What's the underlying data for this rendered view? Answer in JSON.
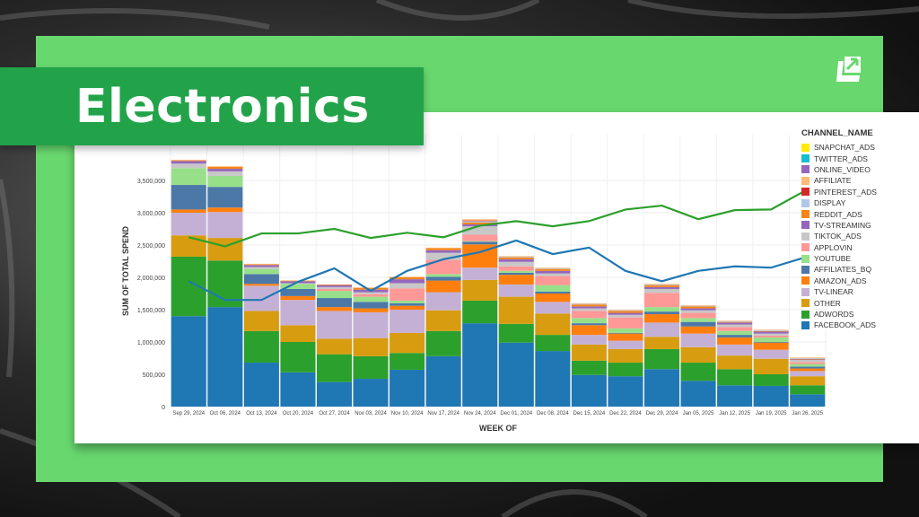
{
  "header": {
    "title": "Electronics",
    "logo": "brand-arrow-logo-icon"
  },
  "colors": {
    "panel_green": "#68d86e",
    "banner_green": "#22a34a",
    "line_green": "#2ca02c",
    "line_blue": "#1f77b4"
  },
  "legend": {
    "title": "CHANNEL_NAME",
    "items": [
      {
        "label": "SNAPCHAT_ADS",
        "color": "#ffea00"
      },
      {
        "label": "TWITTER_ADS",
        "color": "#17becf"
      },
      {
        "label": "ONLINE_VIDEO",
        "color": "#9467bd"
      },
      {
        "label": "AFFILIATE",
        "color": "#ffbb78"
      },
      {
        "label": "PINTEREST_ADS",
        "color": "#d62728"
      },
      {
        "label": "DISPLAY",
        "color": "#aec7e8"
      },
      {
        "label": "REDDIT_ADS",
        "color": "#f58518"
      },
      {
        "label": "TV-STREAMING",
        "color": "#9467bd"
      },
      {
        "label": "TIKTOK_ADS",
        "color": "#c7c7c7"
      },
      {
        "label": "APPLOVIN",
        "color": "#ff9896"
      },
      {
        "label": "YOUTUBE",
        "color": "#98df8a"
      },
      {
        "label": "AFFILIATES_BQ",
        "color": "#4c78a8"
      },
      {
        "label": "AMAZON_ADS",
        "color": "#ff7f0e"
      },
      {
        "label": "TV-LINEAR",
        "color": "#c5b0d5"
      },
      {
        "label": "OTHER",
        "color": "#d89c10"
      },
      {
        "label": "ADWORDS",
        "color": "#2ca02c"
      },
      {
        "label": "FACEBOOK_ADS",
        "color": "#1f77b4"
      }
    ]
  },
  "chart_data": {
    "type": "bar",
    "stacked": true,
    "title": "Electronics",
    "xlabel": "WEEK OF",
    "ylabel": "SUM OF TOTAL SPEND",
    "ylim": [
      0,
      3900000
    ],
    "yticks": [
      "0",
      "500,000",
      "1,000,000",
      "1,500,000",
      "2,000,000",
      "2,500,000",
      "3,000,000",
      "3,500,000"
    ],
    "grid": true,
    "legend_position": "right",
    "categories": [
      "Sep 29, 2024",
      "Oct 06, 2024",
      "Oct 13, 2024",
      "Oct 20, 2024",
      "Oct 27, 2024",
      "Nov 03, 2024",
      "Nov 10, 2024",
      "Nov 17, 2024",
      "Nov 24, 2024",
      "Dec 01, 2024",
      "Dec 08, 2024",
      "Dec 15, 2024",
      "Dec 22, 2024",
      "Dec 29, 2024",
      "Jan 05, 2025",
      "Jan 12, 2025",
      "Jan 19, 2025",
      "Jan 26, 2025"
    ],
    "series": [
      {
        "name": "FACEBOOK_ADS",
        "color": "#1f77b4",
        "values": [
          1400000,
          1540000,
          680000,
          530000,
          380000,
          430000,
          570000,
          780000,
          1290000,
          990000,
          860000,
          490000,
          470000,
          580000,
          400000,
          330000,
          320000,
          190000
        ]
      },
      {
        "name": "ADWORDS",
        "color": "#2ca02c",
        "values": [
          920000,
          720000,
          490000,
          470000,
          430000,
          350000,
          260000,
          390000,
          350000,
          290000,
          250000,
          220000,
          210000,
          310000,
          280000,
          250000,
          180000,
          140000
        ]
      },
      {
        "name": "OTHER",
        "color": "#d89c10",
        "values": [
          330000,
          350000,
          310000,
          260000,
          240000,
          280000,
          310000,
          320000,
          320000,
          420000,
          330000,
          250000,
          210000,
          190000,
          240000,
          210000,
          240000,
          140000
        ]
      },
      {
        "name": "TV-LINEAR",
        "color": "#c5b0d5",
        "values": [
          350000,
          400000,
          390000,
          390000,
          430000,
          400000,
          360000,
          280000,
          190000,
          190000,
          180000,
          150000,
          130000,
          220000,
          210000,
          170000,
          140000,
          80000
        ]
      },
      {
        "name": "AMAZON_ADS",
        "color": "#ff7f0e",
        "values": [
          50000,
          70000,
          30000,
          60000,
          60000,
          60000,
          60000,
          180000,
          360000,
          150000,
          130000,
          150000,
          110000,
          130000,
          110000,
          110000,
          110000,
          40000
        ]
      },
      {
        "name": "AFFILIATES_BQ",
        "color": "#4c78a8",
        "values": [
          380000,
          320000,
          150000,
          110000,
          140000,
          100000,
          40000,
          60000,
          40000,
          30000,
          30000,
          30000,
          10000,
          40000,
          70000,
          40000,
          10000,
          30000
        ]
      },
      {
        "name": "YOUTUBE",
        "color": "#98df8a",
        "values": [
          260000,
          170000,
          80000,
          80000,
          110000,
          80000,
          40000,
          40000,
          10000,
          30000,
          100000,
          80000,
          70000,
          70000,
          60000,
          60000,
          70000,
          40000
        ]
      },
      {
        "name": "APPLOVIN",
        "color": "#ff9896",
        "values": [
          0,
          0,
          0,
          0,
          30000,
          40000,
          190000,
          220000,
          100000,
          70000,
          140000,
          110000,
          170000,
          220000,
          80000,
          60000,
          30000,
          30000
        ]
      },
      {
        "name": "TIKTOK_ADS",
        "color": "#c7c7c7",
        "values": [
          70000,
          70000,
          30000,
          10000,
          30000,
          30000,
          80000,
          110000,
          130000,
          70000,
          40000,
          40000,
          40000,
          60000,
          40000,
          40000,
          30000,
          30000
        ]
      },
      {
        "name": "TV-STREAMING",
        "color": "#9467bd",
        "values": [
          40000,
          40000,
          30000,
          30000,
          30000,
          40000,
          60000,
          40000,
          30000,
          40000,
          40000,
          30000,
          30000,
          30000,
          30000,
          30000,
          30000,
          10000
        ]
      },
      {
        "name": "REDDIT_ADS",
        "color": "#f58518",
        "values": [
          10000,
          30000,
          10000,
          10000,
          10000,
          30000,
          30000,
          30000,
          30000,
          30000,
          30000,
          30000,
          30000,
          30000,
          30000,
          10000,
          10000,
          10000
        ]
      },
      {
        "name": "DISPLAY",
        "color": "#aec7e8",
        "values": [
          0,
          0,
          0,
          0,
          0,
          0,
          0,
          0,
          20000,
          10000,
          10000,
          10000,
          10000,
          10000,
          10000,
          10000,
          10000,
          10000
        ]
      },
      {
        "name": "PINTEREST_ADS",
        "color": "#d62728",
        "values": [
          0,
          0,
          0,
          0,
          0,
          0,
          0,
          0,
          10000,
          0,
          0,
          0,
          0,
          0,
          0,
          0,
          0,
          0
        ]
      },
      {
        "name": "AFFILIATE",
        "color": "#ffbb78",
        "values": [
          10000,
          10000,
          10000,
          0,
          0,
          0,
          10000,
          10000,
          20000,
          10000,
          10000,
          10000,
          10000,
          10000,
          10000,
          10000,
          10000,
          10000
        ]
      },
      {
        "name": "ONLINE_VIDEO",
        "color": "#9467bd",
        "values": [
          0,
          0,
          0,
          0,
          0,
          0,
          0,
          0,
          0,
          0,
          0,
          0,
          0,
          0,
          0,
          0,
          0,
          0
        ]
      },
      {
        "name": "TWITTER_ADS",
        "color": "#17becf",
        "values": [
          0,
          0,
          0,
          0,
          0,
          0,
          0,
          0,
          0,
          0,
          0,
          0,
          0,
          0,
          0,
          0,
          0,
          0
        ]
      },
      {
        "name": "SNAPCHAT_ADS",
        "color": "#ffea00",
        "values": [
          0,
          0,
          0,
          0,
          0,
          0,
          0,
          0,
          0,
          0,
          0,
          0,
          0,
          0,
          0,
          0,
          0,
          0
        ]
      }
    ],
    "lines": [
      {
        "name": "green-trend",
        "color": "#2ca02c",
        "values": [
          2620000,
          2480000,
          2680000,
          2680000,
          2750000,
          2610000,
          2690000,
          2620000,
          2800000,
          2870000,
          2790000,
          2870000,
          3050000,
          3110000,
          2900000,
          3040000,
          3050000,
          3360000
        ]
      },
      {
        "name": "blue-trend",
        "color": "#1f77b4",
        "values": [
          1940000,
          1650000,
          1650000,
          1930000,
          2140000,
          1790000,
          2100000,
          2280000,
          2390000,
          2570000,
          2360000,
          2460000,
          2100000,
          1940000,
          2100000,
          2170000,
          2150000,
          2320000
        ]
      }
    ]
  }
}
